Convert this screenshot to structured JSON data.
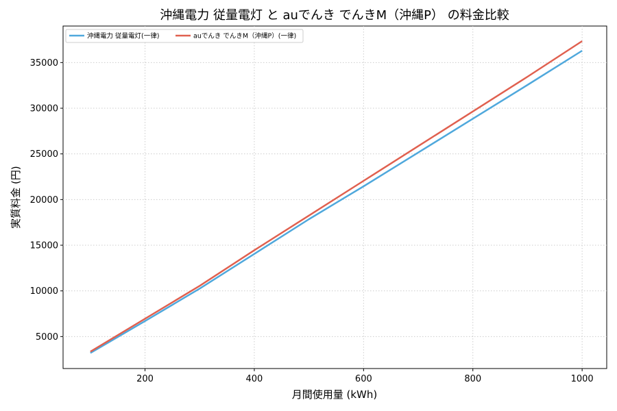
{
  "chart_data": {
    "type": "line",
    "title": "沖縄電力 従量電灯 と auでんき でんきM（沖縄P） の料金比較",
    "xlabel": "月間使用量 (kWh)",
    "ylabel": "実質料金 (円)",
    "xlim": [
      50,
      1045
    ],
    "ylim": [
      1500,
      39000
    ],
    "xticks": [
      200,
      400,
      600,
      800,
      1000
    ],
    "yticks": [
      5000,
      10000,
      15000,
      20000,
      25000,
      30000,
      35000
    ],
    "grid": true,
    "legend_position": "top-left",
    "series": [
      {
        "name": "沖縄電力 従量電灯(一律)",
        "color": "#4fa8dc",
        "x": [
          100,
          200,
          300,
          400,
          500,
          600,
          700,
          800,
          900,
          1000
        ],
        "y": [
          3200,
          6700,
          10250,
          14050,
          17850,
          21450,
          25150,
          28850,
          32550,
          36300
        ]
      },
      {
        "name": "auでんき でんきM（沖縄P）(一律)",
        "color": "#e0604f",
        "x": [
          100,
          200,
          300,
          400,
          500,
          600,
          700,
          800,
          900,
          1000
        ],
        "y": [
          3350,
          6950,
          10550,
          14450,
          18250,
          22050,
          25850,
          29650,
          33450,
          37350
        ]
      }
    ]
  }
}
